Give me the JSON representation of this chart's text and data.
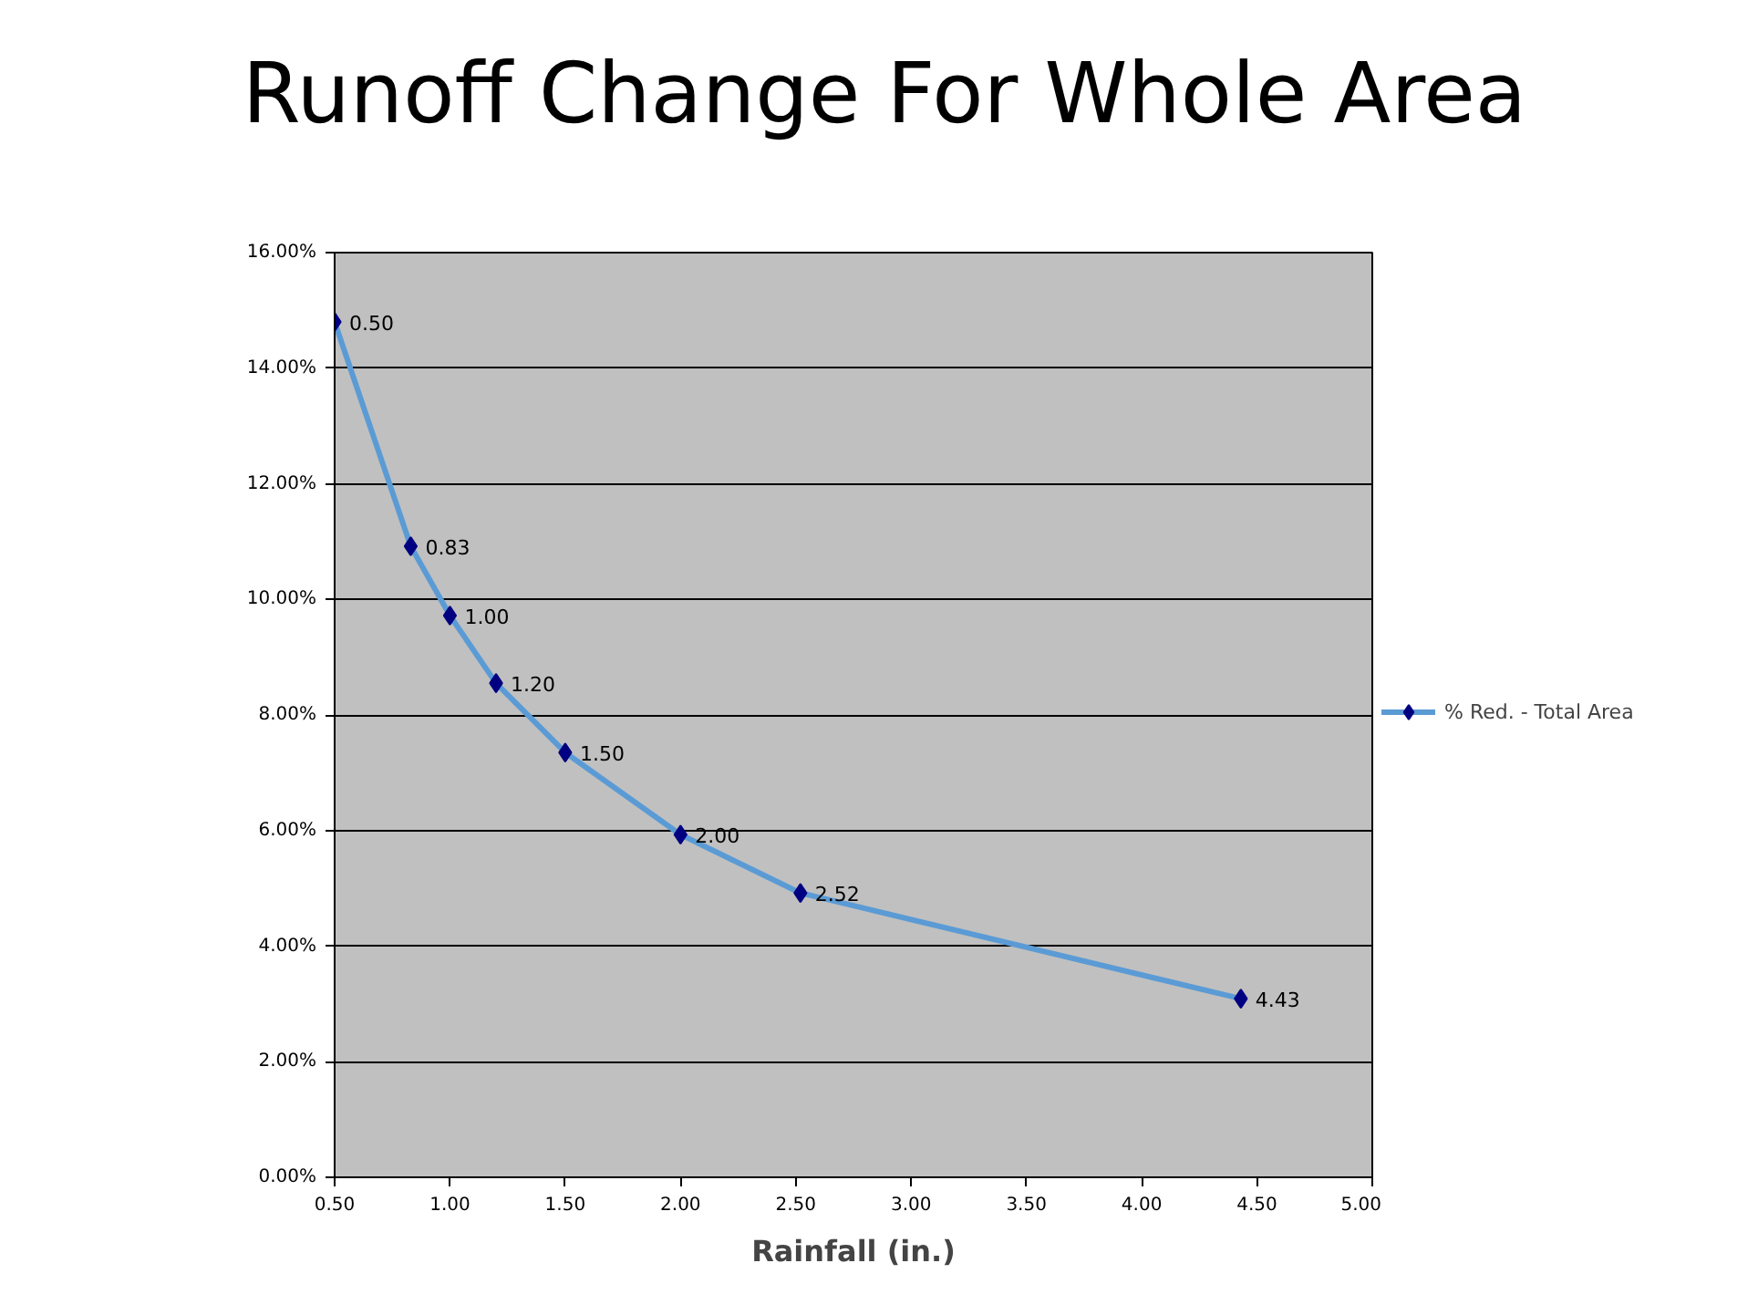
{
  "chart_data": {
    "type": "line",
    "title": "Runoff Change For Whole Area",
    "xlabel": "Rainfall (in.)",
    "series": [
      {
        "name": "% Red. - Total Area",
        "color": "#5b9bd5",
        "x": [
          0.5,
          0.83,
          1.0,
          1.2,
          1.5,
          2.0,
          2.52,
          4.43
        ],
        "values": [
          14.8,
          10.92,
          9.72,
          8.55,
          7.35,
          5.93,
          4.92,
          3.09
        ]
      }
    ],
    "annotations": [
      {
        "text": "0.50",
        "x": 0.5,
        "y": 14.8
      },
      {
        "text": "0.83",
        "x": 0.83,
        "y": 10.92
      },
      {
        "text": "1.00",
        "x": 1.0,
        "y": 9.72
      },
      {
        "text": "1.20",
        "x": 1.2,
        "y": 8.55
      },
      {
        "text": "1.50",
        "x": 1.5,
        "y": 7.35
      },
      {
        "text": "2.00",
        "x": 2.0,
        "y": 5.93
      },
      {
        "text": "2.52",
        "x": 2.52,
        "y": 4.92
      },
      {
        "text": "4.43",
        "x": 4.43,
        "y": 3.09
      }
    ],
    "xlim": [
      0.5,
      5
    ],
    "xticks": [
      {
        "value": 0.5,
        "label": "0.50"
      },
      {
        "value": 1,
        "label": "1.00"
      },
      {
        "value": 1.5,
        "label": "1.50"
      },
      {
        "value": 2,
        "label": "2.00"
      },
      {
        "value": 2.5,
        "label": "2.50"
      },
      {
        "value": 3,
        "label": "3.00"
      },
      {
        "value": 3.5,
        "label": "3.50"
      },
      {
        "value": 4,
        "label": "4.00"
      },
      {
        "value": 4.5,
        "label": "4.50"
      },
      {
        "value": 5,
        "label": "5.00"
      }
    ],
    "ylim": [
      0,
      16
    ],
    "yticks": [
      {
        "value": 0,
        "label": "0.00%"
      },
      {
        "value": 2,
        "label": "2.00%"
      },
      {
        "value": 4,
        "label": "4.00%"
      },
      {
        "value": 6,
        "label": "6.00%"
      },
      {
        "value": 8,
        "label": "8.00%"
      },
      {
        "value": 10,
        "label": "10.00%"
      },
      {
        "value": 12,
        "label": "12.00%"
      },
      {
        "value": 14,
        "label": "14.00%"
      },
      {
        "value": 16,
        "label": "16.00%"
      }
    ],
    "grid": "y",
    "legend": "right",
    "marker": "diamond",
    "line_style": "solid"
  }
}
